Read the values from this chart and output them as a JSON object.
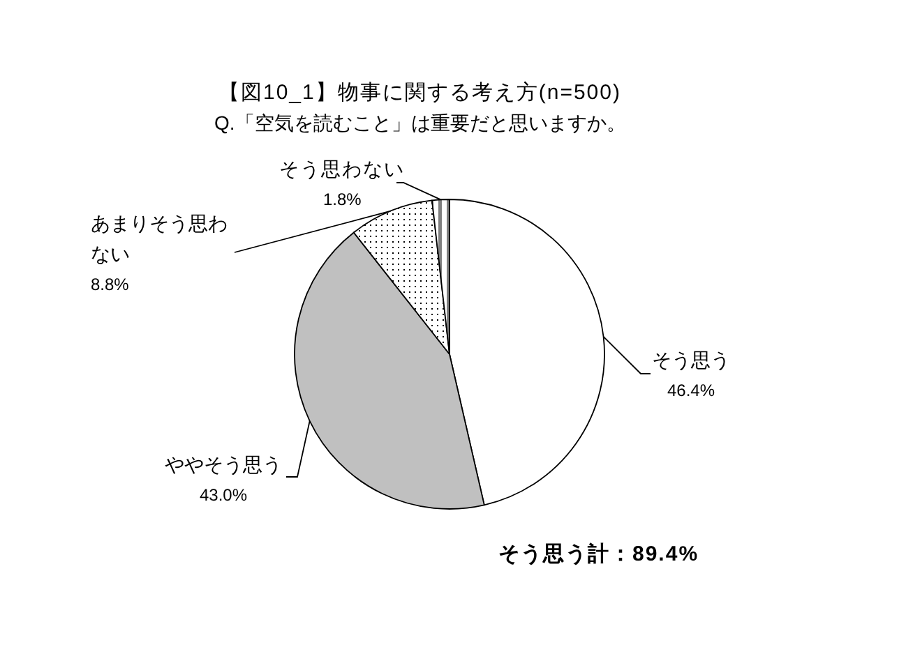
{
  "chart_data": {
    "type": "pie",
    "title": "【図10_1】物事に関する考え方(n=500)",
    "subtitle": "Q.「空気を読むこと」は重要だと思いますか。",
    "categories": [
      "そう思う",
      "ややそう思う",
      "あまりそう思わない",
      "そう思わない"
    ],
    "values": [
      46.4,
      43.0,
      8.8,
      1.8
    ],
    "colors": [
      "#ffffff",
      "#c0c0c0",
      "#ffffff",
      "#ffffff"
    ],
    "value_labels": [
      "46.4%",
      "43.0%",
      "8.8%",
      "1.8%"
    ],
    "annotations": [
      "そう思う計：89.4%"
    ]
  }
}
